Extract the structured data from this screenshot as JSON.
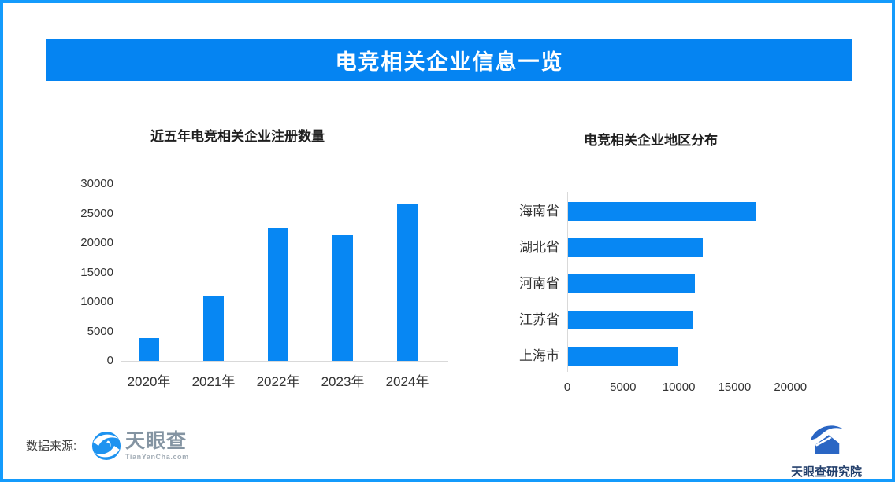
{
  "page": {
    "title": "电竞相关企业信息一览",
    "border_color": "#149bfc",
    "banner_color": "#0584f2",
    "bar_color": "#0787f3"
  },
  "chart_data": [
    {
      "type": "bar",
      "title": "近五年电竞相关企业注册数量",
      "categories": [
        "2020年",
        "2021年",
        "2022年",
        "2023年",
        "2024年"
      ],
      "values": [
        3900,
        11100,
        22500,
        21300,
        26700
      ],
      "xlabel": "",
      "ylabel": "",
      "ylim": [
        0,
        30000
      ],
      "yticks": [
        0,
        5000,
        10000,
        15000,
        20000,
        25000,
        30000
      ],
      "grid": false,
      "legend": "none",
      "bar_color": "#0787f3"
    },
    {
      "type": "bar",
      "orientation": "horizontal",
      "title": "电竞相关企业地区分布",
      "categories": [
        "海南省",
        "湖北省",
        "河南省",
        "江苏省",
        "上海市"
      ],
      "values": [
        16900,
        12100,
        11400,
        11200,
        9800
      ],
      "xlabel": "",
      "ylabel": "",
      "xlim": [
        0,
        20000
      ],
      "xticks": [
        0,
        5000,
        10000,
        15000,
        20000
      ],
      "grid": false,
      "legend": "none",
      "bar_color": "#0787f3"
    }
  ],
  "footer": {
    "source_label": "数据来源:",
    "source_logo_name": "天眼查",
    "source_logo_sub": "TianYanCha.com",
    "org_logo_name": "天眼查研究院",
    "icons": {
      "tianyancha_icon": "blue swirl eye circle",
      "research_institute_icon": "blue swoosh over house"
    }
  }
}
